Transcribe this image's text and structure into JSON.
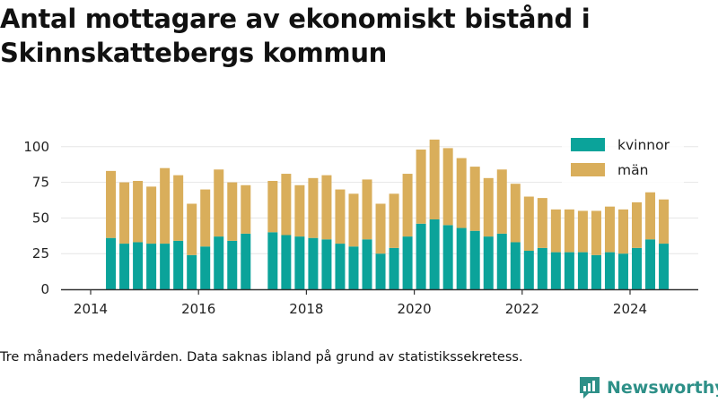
{
  "title": "Antal mottagare av ekonomiskt bistånd i Skinnskattebergs kommun",
  "caption": "Tre månaders medelvärden. Data saknas ibland på grund av statistikssekretess.",
  "brand": {
    "name": "Newsworthy",
    "icon": "newsworthy-logo-icon",
    "color": "#2e9088"
  },
  "colors": {
    "kvinnor": "#0ba39a",
    "man": "#d9ae5b",
    "axis": "#333333",
    "grid": "#e6e6e6"
  },
  "chart_data": {
    "type": "bar",
    "stacked": true,
    "grid": true,
    "legend_position": "top-right",
    "xlim": [
      2013.75,
      2025.25
    ],
    "ylim": [
      0,
      110
    ],
    "y_ticks": [
      0,
      25,
      50,
      75,
      100
    ],
    "x_ticks": [
      2014,
      2016,
      2018,
      2020,
      2022,
      2024
    ],
    "x_tick_labels": [
      "2014",
      "2016",
      "2018",
      "2020",
      "2022",
      "2024"
    ],
    "x": [
      2014.375,
      2014.625,
      2014.875,
      2015.125,
      2015.375,
      2015.625,
      2015.875,
      2016.125,
      2016.375,
      2016.625,
      2016.875,
      2017.375,
      2017.625,
      2017.875,
      2018.125,
      2018.375,
      2018.625,
      2018.875,
      2019.125,
      2019.375,
      2019.625,
      2019.875,
      2020.125,
      2020.375,
      2020.625,
      2020.875,
      2021.125,
      2021.375,
      2021.625,
      2021.875,
      2022.125,
      2022.375,
      2022.625,
      2022.875,
      2023.125,
      2023.375,
      2023.625,
      2023.875,
      2024.125,
      2024.375,
      2024.625
    ],
    "series": [
      {
        "name": "kvinnor",
        "values": [
          36,
          32,
          33,
          32,
          32,
          34,
          24,
          30,
          37,
          34,
          39,
          40,
          38,
          37,
          36,
          35,
          32,
          30,
          35,
          25,
          29,
          37,
          46,
          49,
          45,
          43,
          41,
          37,
          39,
          33,
          27,
          29,
          26,
          26,
          26,
          24,
          26,
          25,
          29,
          35,
          32
        ]
      },
      {
        "name": "män",
        "values": [
          47,
          43,
          43,
          40,
          53,
          46,
          36,
          40,
          47,
          41,
          34,
          36,
          43,
          36,
          42,
          45,
          38,
          37,
          42,
          35,
          38,
          44,
          52,
          56,
          54,
          49,
          45,
          41,
          45,
          41,
          38,
          35,
          30,
          30,
          29,
          31,
          32,
          31,
          32,
          33,
          31
        ]
      }
    ]
  }
}
